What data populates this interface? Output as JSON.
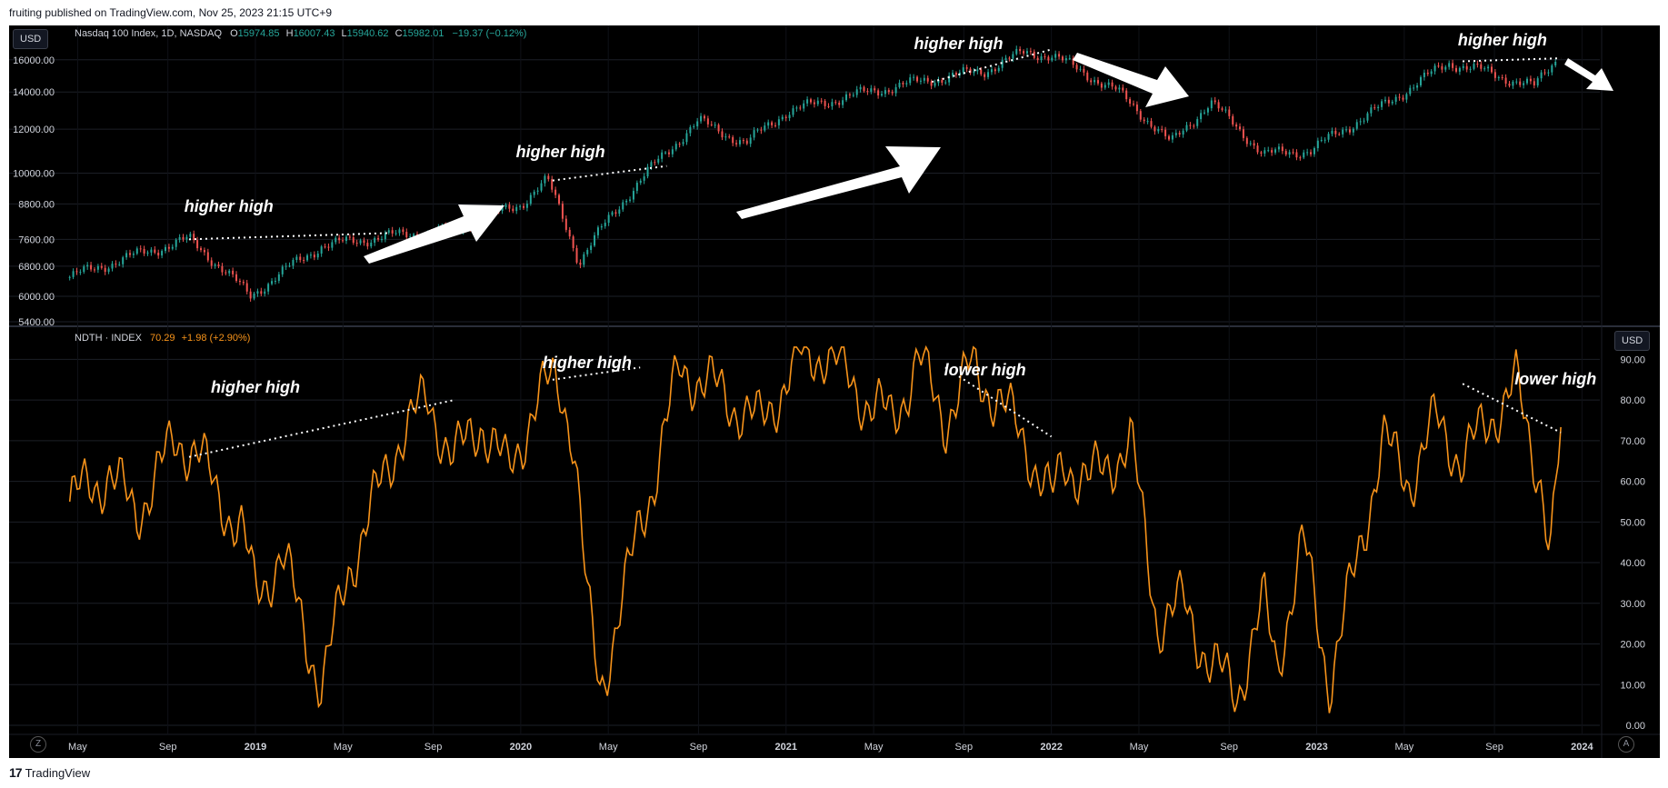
{
  "publish_line": "fruiting published on TradingView.com, Nov 25, 2023 21:15 UTC+9",
  "brand": {
    "logo": "17",
    "name": "TradingView"
  },
  "top_panel": {
    "currency": "USD",
    "symbol": "Nasdaq 100 Index, 1D, NASDAQ",
    "o_label": "O",
    "o": "15974.85",
    "h_label": "H",
    "h": "16007.43",
    "l_label": "L",
    "l": "15940.62",
    "c_label": "C",
    "c": "15982.01",
    "change": "−19.37 (−0.12%)"
  },
  "bottom_panel": {
    "currency": "USD",
    "symbol": "NDTH · INDEX",
    "value": "70.29",
    "change": "+1.98 (+2.90%)"
  },
  "buttons": {
    "zoom": "Z",
    "auto": "A"
  },
  "colors": {
    "background": "#000000",
    "line": "#f7931a",
    "up": "#26a69a",
    "down": "#ef5350",
    "text": "#d1d4dc"
  },
  "chart_data": [
    {
      "type": "candlestick",
      "title": "Nasdaq 100 Index, 1D, NASDAQ",
      "scale": "log",
      "ylim": [
        5400,
        17500
      ],
      "y_ticks": [
        "16000.00",
        "14000.00",
        "12000.00",
        "10000.00",
        "8800.00",
        "7600.00",
        "6800.00",
        "6000.00",
        "5400.00"
      ],
      "x": [
        2018.3,
        2018.5,
        2018.75,
        2018.98,
        2019.25,
        2019.5,
        2019.75,
        2020.0,
        2020.1,
        2020.22,
        2020.5,
        2020.67,
        2020.85,
        2021.0,
        2021.25,
        2021.5,
        2021.75,
        2021.9,
        2022.0,
        2022.25,
        2022.45,
        2022.6,
        2022.8,
        2022.98,
        2023.25,
        2023.5,
        2023.6,
        2023.82,
        2023.9
      ],
      "values": [
        6500,
        7000,
        7600,
        6000,
        7400,
        7700,
        7900,
        8800,
        9700,
        6900,
        10300,
        12400,
        11300,
        12900,
        13800,
        14600,
        15300,
        16500,
        16300,
        14000,
        11300,
        13400,
        10800,
        11000,
        13200,
        15800,
        15400,
        14300,
        15980
      ],
      "annotations": [
        {
          "text": "higher high",
          "x": 2018.9
        },
        {
          "text": "higher high",
          "x": 2020.15
        },
        {
          "text": "higher high",
          "x": 2021.65
        },
        {
          "text": "higher high",
          "x": 2023.7
        }
      ]
    },
    {
      "type": "line",
      "title": "NDTH · INDEX",
      "ylim": [
        0,
        95
      ],
      "y_ticks": [
        "90.00",
        "80.00",
        "70.00",
        "60.00",
        "50.00",
        "40.00",
        "30.00",
        "20.00",
        "10.00",
        "0.00"
      ],
      "x_ticks": [
        "May",
        "Sep",
        "2019",
        "May",
        "Sep",
        "2020",
        "May",
        "Sep",
        "2021",
        "May",
        "Sep",
        "2022",
        "May",
        "Sep",
        "2023",
        "May",
        "Sep",
        "2024"
      ],
      "x": [
        2018.3,
        2018.45,
        2018.55,
        2018.7,
        2018.78,
        2018.85,
        2018.95,
        2019.0,
        2019.1,
        2019.25,
        2019.35,
        2019.45,
        2019.55,
        2019.65,
        2019.75,
        2019.85,
        2019.95,
        2020.05,
        2020.12,
        2020.15,
        2020.2,
        2020.25,
        2020.3,
        2020.4,
        2020.45,
        2020.5,
        2020.6,
        2020.75,
        2020.9,
        2021.05,
        2021.15,
        2021.2,
        2021.3,
        2021.4,
        2021.5,
        2021.6,
        2021.7,
        2021.8,
        2021.9,
        2022.0,
        2022.05,
        2022.15,
        2022.3,
        2022.4,
        2022.5,
        2022.6,
        2022.7,
        2022.8,
        2022.85,
        2022.95,
        2023.05,
        2023.15,
        2023.25,
        2023.35,
        2023.45,
        2023.55,
        2023.65,
        2023.75,
        2023.8,
        2023.85,
        2023.88,
        2023.92
      ],
      "values": [
        55,
        62,
        52,
        70,
        68,
        57,
        48,
        32,
        42,
        9,
        38,
        55,
        72,
        80,
        65,
        75,
        62,
        78,
        85,
        84,
        70,
        30,
        9,
        35,
        50,
        60,
        88,
        82,
        74,
        90,
        92,
        88,
        80,
        75,
        90,
        75,
        88,
        80,
        70,
        55,
        65,
        60,
        70,
        25,
        30,
        15,
        8,
        30,
        15,
        45,
        10,
        40,
        70,
        60,
        75,
        65,
        75,
        84,
        70,
        60,
        42,
        70
      ],
      "annotations": [
        {
          "text": "higher high",
          "x": 2019.0
        },
        {
          "text": "higher high",
          "x": 2020.25
        },
        {
          "text": "lower high",
          "x": 2021.75
        },
        {
          "text": "lower high",
          "x": 2023.9
        }
      ]
    }
  ]
}
